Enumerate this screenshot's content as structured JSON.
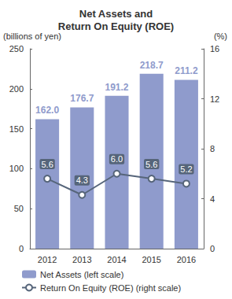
{
  "chart_data": {
    "type": "bar",
    "title": "Net Assets and\nReturn On Equity (ROE)",
    "ylabel": "(billions of yen)",
    "y2label": "(%)",
    "categories": [
      "2012",
      "2013",
      "2014",
      "2015",
      "2016"
    ],
    "series": [
      {
        "name": "Net Assets (left scale)",
        "type": "bar",
        "color": "#8f9bcc",
        "values": [
          162.0,
          176.7,
          191.2,
          218.7,
          211.2
        ],
        "value_labels": [
          "162.0",
          "176.7",
          "191.2",
          "218.7",
          "211.2"
        ]
      },
      {
        "name": "Return On Equity (ROE) (right scale)",
        "type": "line",
        "axis": "y2",
        "color": "#56657a",
        "marker": "circle",
        "values": [
          5.6,
          4.3,
          6.0,
          5.6,
          5.2
        ],
        "value_labels": [
          "5.6",
          "4.3",
          "6.0",
          "5.6",
          "5.2"
        ]
      }
    ],
    "ylim": [
      0,
      250
    ],
    "yticks": [
      0,
      50,
      100,
      150,
      200,
      250
    ],
    "y2lim": [
      0,
      16
    ],
    "y2ticks": [
      0,
      4,
      8,
      12,
      16
    ],
    "data_labels": true,
    "grid": false,
    "legend": "bottom"
  }
}
